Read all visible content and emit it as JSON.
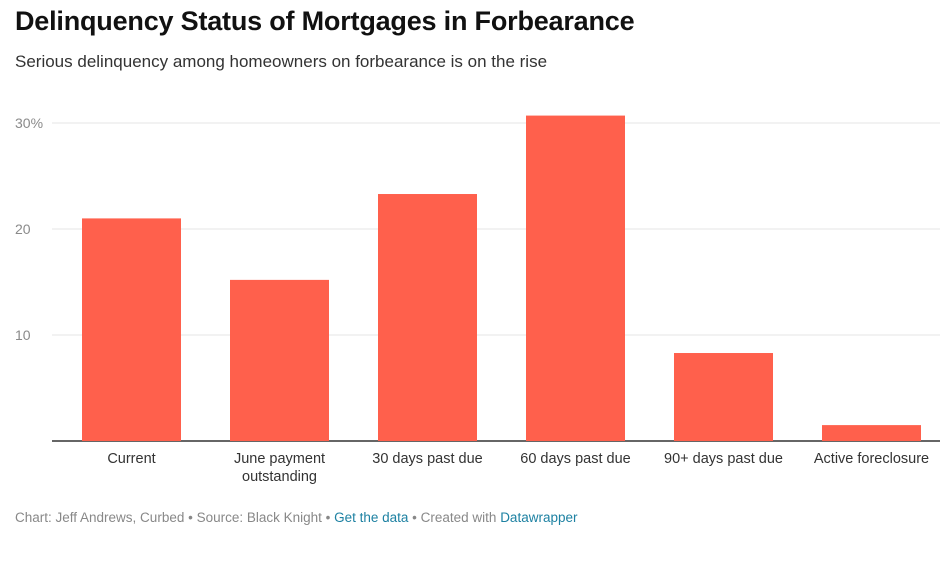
{
  "chart_data": {
    "type": "bar",
    "title": "Delinquency Status of Mortgages in Forbearance",
    "subtitle": "Serious delinquency among homeowners on forbearance is on the rise",
    "categories": [
      [
        "Current"
      ],
      [
        "June payment",
        "outstanding"
      ],
      [
        "30 days past due"
      ],
      [
        "60 days past due"
      ],
      [
        "90+ days past due"
      ],
      [
        "Active foreclosure"
      ]
    ],
    "values": [
      21,
      15.2,
      23.3,
      30.7,
      8.3,
      1.5
    ],
    "yticks": [
      "10",
      "20",
      "30%"
    ],
    "ytick_values": [
      10,
      20,
      30
    ],
    "ylim": [
      0,
      31
    ],
    "bar_color": "#ff604c",
    "grid": true
  },
  "footer": {
    "credit": "Chart: Jeff Andrews, Curbed • Source: Black Knight • ",
    "get_data": "Get the data",
    "created_with": " • Created with ",
    "tool": "Datawrapper",
    "link_color": "#1d81a2"
  }
}
